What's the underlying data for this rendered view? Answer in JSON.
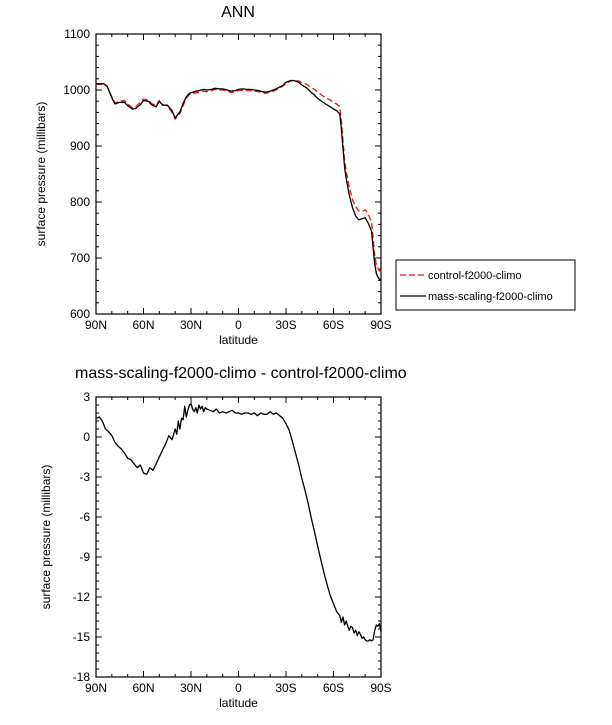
{
  "chart_data": [
    {
      "type": "line",
      "title": "ANN",
      "xlabel": "latitude",
      "ylabel": "surface pressure (millibars)",
      "x_ticks": [
        "90N",
        "60N",
        "30N",
        "0",
        "30S",
        "60S",
        "90S"
      ],
      "x_tick_values": [
        -90,
        -60,
        -30,
        0,
        30,
        60,
        90
      ],
      "y_ticks": [
        "600",
        "700",
        "800",
        "900",
        "1000",
        "1100"
      ],
      "y_tick_values": [
        600,
        700,
        800,
        900,
        1000,
        1100
      ],
      "xlim": [
        -90,
        90
      ],
      "ylim": [
        600,
        1100
      ],
      "legend_position": "right",
      "series": [
        {
          "name": "control-f2000-climo",
          "color": "#e8120c",
          "dash": "dashed",
          "x": [
            -90,
            -85,
            -83,
            -80,
            -78,
            -75,
            -72,
            -70,
            -67,
            -65,
            -62,
            -60,
            -57,
            -55,
            -52,
            -50,
            -48,
            -45,
            -42,
            -40,
            -37,
            -35,
            -33,
            -31,
            -29,
            -27,
            -25,
            -22,
            -20,
            -17,
            -15,
            -12,
            -10,
            -7,
            -5,
            -2,
            0,
            3,
            5,
            8,
            10,
            13,
            15,
            17,
            20,
            23,
            25,
            28,
            30,
            33,
            35,
            38,
            40,
            43,
            45,
            48,
            50,
            53,
            55,
            58,
            60,
            62,
            64,
            65,
            66,
            67,
            68,
            70,
            72,
            74,
            76,
            78,
            80,
            82,
            84,
            85,
            86,
            87,
            88,
            89,
            90
          ],
          "y": [
            1010,
            1010,
            1006,
            988,
            977,
            980,
            981,
            975,
            968,
            970,
            978,
            984,
            982,
            976,
            972,
            981,
            974,
            972,
            960,
            948,
            958,
            972,
            985,
            992,
            994,
            995,
            996,
            998,
            997,
            999,
            1001,
            1000,
            1000,
            998,
            996,
            997,
            999,
            1000,
            999,
            999,
            998,
            997,
            995,
            994,
            996,
            999,
            1002,
            1007,
            1012,
            1016,
            1017,
            1016,
            1013,
            1010,
            1006,
            1001,
            996,
            990,
            986,
            982,
            978,
            975,
            970,
            945,
            910,
            875,
            855,
            827,
            804,
            792,
            784,
            783,
            786,
            778,
            765,
            735,
            705,
            688,
            682,
            677,
            676
          ]
        },
        {
          "name": "mass-scaling-f2000-climo",
          "color": "#000000",
          "dash": "solid",
          "x": [
            -90,
            -85,
            -83,
            -80,
            -78,
            -75,
            -72,
            -70,
            -67,
            -65,
            -62,
            -60,
            -57,
            -55,
            -52,
            -50,
            -48,
            -45,
            -42,
            -40,
            -37,
            -35,
            -33,
            -31,
            -29,
            -27,
            -25,
            -22,
            -20,
            -17,
            -15,
            -12,
            -10,
            -7,
            -5,
            -2,
            0,
            3,
            5,
            8,
            10,
            13,
            15,
            17,
            20,
            23,
            25,
            28,
            30,
            33,
            35,
            38,
            40,
            43,
            45,
            48,
            50,
            53,
            55,
            58,
            60,
            62,
            64,
            65,
            66,
            67,
            68,
            70,
            72,
            74,
            76,
            78,
            80,
            82,
            84,
            85,
            86,
            87,
            88,
            89,
            90
          ],
          "y": [
            1011,
            1011,
            1007,
            986,
            975,
            978,
            978,
            972,
            966,
            967,
            974,
            981,
            980,
            974,
            970,
            980,
            973,
            973,
            963,
            950,
            961,
            976,
            988,
            994,
            996,
            998,
            999,
            1001,
            1000,
            1001,
            1003,
            1002,
            1002,
            1000,
            998,
            999,
            1001,
            1002,
            1001,
            1001,
            1000,
            999,
            997,
            996,
            998,
            1001,
            1004,
            1008,
            1014,
            1017,
            1017,
            1014,
            1009,
            1004,
            998,
            991,
            985,
            979,
            975,
            970,
            966,
            963,
            957,
            930,
            895,
            862,
            842,
            812,
            790,
            775,
            768,
            770,
            772,
            762,
            748,
            718,
            690,
            673,
            666,
            662,
            662
          ]
        }
      ]
    },
    {
      "type": "line",
      "title": "mass-scaling-f2000-climo - control-f2000-climo",
      "xlabel": "latitude",
      "ylabel": "surface pressure (millibars)",
      "x_ticks": [
        "90N",
        "60N",
        "30N",
        "0",
        "30S",
        "60S",
        "90S"
      ],
      "x_tick_values": [
        -90,
        -60,
        -30,
        0,
        30,
        60,
        90
      ],
      "y_ticks": [
        "-18",
        "-15",
        "-12",
        "-9",
        "-6",
        "-3",
        "0",
        "3"
      ],
      "y_tick_values": [
        -18,
        -15,
        -12,
        -9,
        -6,
        -3,
        0,
        3
      ],
      "xlim": [
        -90,
        90
      ],
      "ylim": [
        -18,
        3
      ],
      "series": [
        {
          "color": "#000000",
          "dash": "solid",
          "x": [
            -90,
            -88,
            -86,
            -84,
            -82,
            -80,
            -78,
            -76,
            -74,
            -72,
            -70,
            -68,
            -66,
            -64,
            -62,
            -60,
            -58,
            -56,
            -54,
            -52,
            -50,
            -48,
            -46,
            -44,
            -42,
            -40,
            -39,
            -38,
            -37,
            -36,
            -35,
            -34,
            -33,
            -32,
            -31,
            -30,
            -29,
            -28,
            -27,
            -26,
            -25,
            -24,
            -23,
            -22,
            -21,
            -20,
            -18,
            -16,
            -14,
            -12,
            -10,
            -8,
            -6,
            -4,
            -2,
            0,
            2,
            4,
            6,
            8,
            10,
            12,
            14,
            16,
            18,
            20,
            22,
            24,
            26,
            28,
            30,
            32,
            34,
            36,
            38,
            40,
            42,
            44,
            46,
            48,
            50,
            52,
            54,
            56,
            58,
            60,
            62,
            64,
            65,
            66,
            67,
            68,
            69,
            70,
            71,
            72,
            73,
            74,
            75,
            76,
            77,
            78,
            79,
            80,
            81,
            82,
            83,
            84,
            85,
            86,
            87,
            88,
            89,
            90
          ],
          "y": [
            1.4,
            1.5,
            1.2,
            0.6,
            0.4,
            0.1,
            -0.4,
            -0.7,
            -0.9,
            -1.2,
            -1.6,
            -1.7,
            -2.0,
            -2.3,
            -2.1,
            -2.7,
            -2.8,
            -2.3,
            -2.5,
            -2.0,
            -1.5,
            -1.0,
            -0.5,
            0.1,
            -0.2,
            0.6,
            0.2,
            1.2,
            0.6,
            1.4,
            1.3,
            2.3,
            1.5,
            2.0,
            2.4,
            2.5,
            2.1,
            1.9,
            2.2,
            1.8,
            2.4,
            2.1,
            2.3,
            1.9,
            2.2,
            2.1,
            2.0,
            1.9,
            2.1,
            1.8,
            1.9,
            1.8,
            1.9,
            2.0,
            1.8,
            1.8,
            1.7,
            1.8,
            1.8,
            1.7,
            1.8,
            1.6,
            1.8,
            1.7,
            1.7,
            1.9,
            1.7,
            1.8,
            1.6,
            1.4,
            1.0,
            0.5,
            -0.3,
            -1.2,
            -2.1,
            -3.1,
            -4.0,
            -5.0,
            -6.1,
            -7.1,
            -8.2,
            -9.2,
            -10.2,
            -11.1,
            -11.9,
            -12.5,
            -13.1,
            -13.4,
            -13.9,
            -13.5,
            -14.1,
            -13.8,
            -14.2,
            -14.5,
            -14.2,
            -14.3,
            -14.7,
            -14.5,
            -14.9,
            -14.6,
            -14.8,
            -15.1,
            -15.0,
            -15.2,
            -15.3,
            -15.3,
            -15.2,
            -15.3,
            -15.2,
            -14.5,
            -14.1,
            -14.2,
            -14.0,
            -14.6
          ]
        }
      ]
    }
  ]
}
